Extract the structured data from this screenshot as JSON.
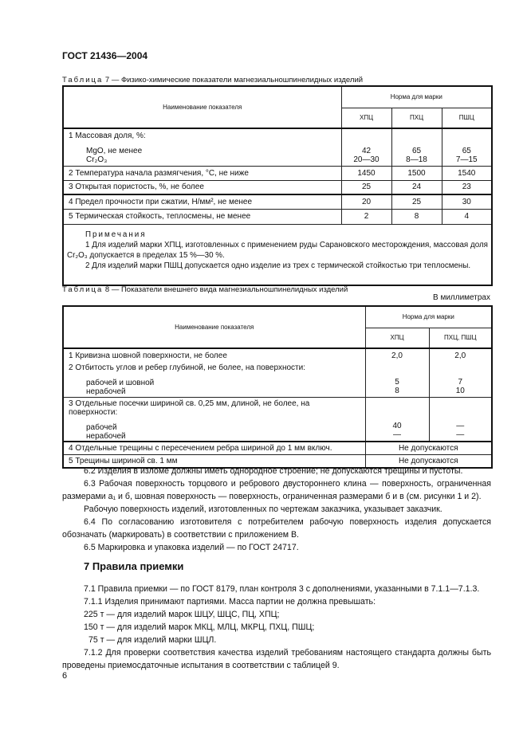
{
  "header": {
    "doc_id": "ГОСТ 21436—2004"
  },
  "table7": {
    "caption_prefix": "Таблица",
    "caption": "7 — Физико-химические показатели магнезиальношпинелидных изделий",
    "col_name": "Наименование показателя",
    "col_group": "Норма для марки",
    "cols": [
      "ХПЦ",
      "ПХЦ",
      "ПШЦ"
    ],
    "row1": {
      "label": "1 Массовая доля, %:",
      "sub": [
        "MgO, не менее",
        "Cr₂O₃"
      ],
      "values": [
        [
          "42",
          "20—30"
        ],
        [
          "65",
          "8—18"
        ],
        [
          "65",
          "7—15"
        ]
      ]
    },
    "rows": [
      {
        "label": "2 Температура начала размягчения, °С, не ниже",
        "values": [
          "1450",
          "1500",
          "1540"
        ]
      },
      {
        "label": "3 Открытая пористость, %, не более",
        "values": [
          "25",
          "24",
          "23"
        ]
      },
      {
        "label": "4 Предел прочности при сжатии, Н/мм², не менее",
        "values": [
          "20",
          "25",
          "30"
        ]
      },
      {
        "label": "5 Термическая стойкость, теплосмены, не менее",
        "values": [
          "2",
          "8",
          "4"
        ]
      }
    ],
    "notes_title": "Примечания",
    "notes": [
      "1 Для изделий марки ХПЦ, изготовленных с применением руды Сарановского месторождения, массовая доля Cr₂O₃ допускается в пределах 15 %—30 %.",
      "2 Для изделий марки ПШЦ допускается одно изделие из трех с термической стойкостью три теплосмены."
    ]
  },
  "table8": {
    "caption_prefix": "Таблица",
    "caption": "8 — Показатели внешнего вида магнезиальношпинелидных изделий",
    "units": "В миллиметрах",
    "col_name": "Наименование показателя",
    "col_group": "Норма для марки",
    "cols": [
      "ХПЦ",
      "ПХЦ, ПШЦ"
    ],
    "r1": {
      "label": "1 Кривизна шовной поверхности, не более",
      "v": [
        "2,0",
        "2,0"
      ]
    },
    "r2": {
      "label": "2 Отбитость углов и ребер глубиной, не более, на поверхности:",
      "sub": [
        "рабочей и шовной",
        "нерабочей"
      ],
      "v1": [
        "5",
        "8"
      ],
      "v2": [
        "7",
        "10"
      ]
    },
    "r3": {
      "label": "3 Отдельные посечки шириной св. 0,25 мм, длиной, не более, на поверхности:",
      "sub": [
        "рабочей",
        "нерабочей"
      ],
      "v1": [
        "40",
        "—"
      ],
      "v2": [
        "—",
        "—"
      ]
    },
    "r4": {
      "label": "4 Отдельные трещины с пересечением ребра шириной до 1 мм включ.",
      "v": "Не допускаются"
    },
    "r5": {
      "label": "5 Трещины шириной св. 1 мм",
      "v": "Не допускаются"
    }
  },
  "body": {
    "p62": "6.2 Изделия в изломе должны иметь однородное строение; не допускаются трещины и пустоты.",
    "p63": "6.3 Рабочая поверхность торцового и ребрового двустороннего клина — поверхность, ограниченная размерами а₁ и б, шовная поверхность — поверхность, ограниченная размерами б и в (см. рисунки 1 и 2).",
    "p63b": "Рабочую поверхность изделий, изготовленных по чертежам заказчика, указывает заказчик.",
    "p64": "6.4 По согласованию изготовителя с потребителем рабочую поверхность изделия допускается обозначать (маркировать) в соответствии с приложением В.",
    "p65": "6.5 Маркировка и упаковка изделий — по ГОСТ 24717.",
    "section7": "7 Правила приемки",
    "p71": "7.1 Правила приемки — по ГОСТ 8179, план контроля 3 с дополнениями, указанными в 7.1.1—7.1.3.",
    "p711": "7.1.1 Изделия принимают партиями. Масса партии не должна превышать:",
    "l1": "225 т — для изделий марок ШЦУ, ШЦС, ПЦ, ХПЦ;",
    "l2": "150 т — для изделий марок МКЦ, МЛЦ, МКРЦ, ПХЦ, ПШЦ;",
    "l3": "75 т — для изделий марки ШЦЛ.",
    "p712": "7.1.2 Для проверки соответствия качества изделий требованиям настоящего стандарта должны быть проведены приемосдаточные испытания в соответствии с таблицей 9."
  },
  "footer": {
    "page_number": "6"
  }
}
